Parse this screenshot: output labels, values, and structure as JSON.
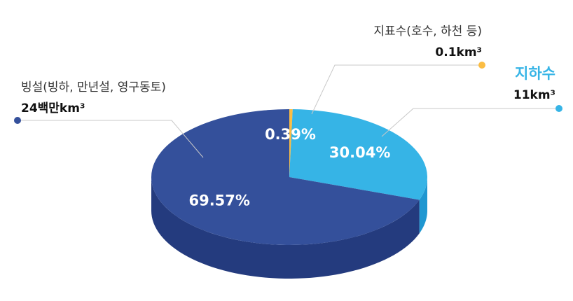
{
  "chart_data": {
    "type": "pie3d",
    "categories": [
      "지표수(호수, 하천 등)",
      "지하수",
      "빙설(빙하, 만년설, 영구동토)"
    ],
    "values": [
      0.39,
      30.04,
      69.57
    ],
    "value_labels": [
      "0.39%",
      "30.04%",
      "69.57%"
    ],
    "amount_labels": [
      "0.1km³",
      "11km³",
      "24백만km³"
    ],
    "colors": [
      "#fbbd43",
      "#36b4e6",
      "#34509b"
    ],
    "side_colors": [
      "#e0a22c",
      "#1f97d1",
      "#243b7e"
    ]
  }
}
